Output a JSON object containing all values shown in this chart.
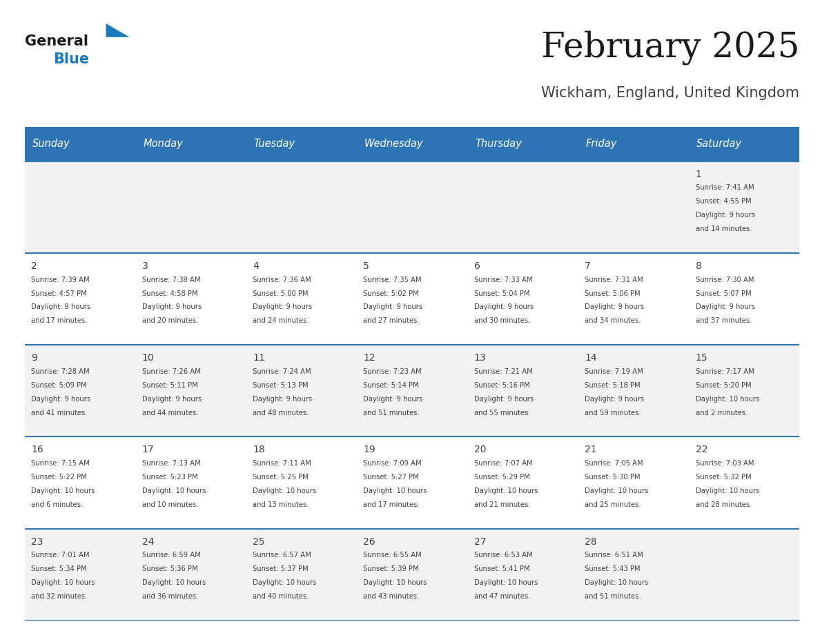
{
  "title": "February 2025",
  "subtitle": "Wickham, England, United Kingdom",
  "header_bg": "#2E74B5",
  "header_text_color": "#FFFFFF",
  "cell_bg_odd": "#F2F2F2",
  "cell_bg_even": "#FFFFFF",
  "border_color": "#2E74B5",
  "text_color": "#404040",
  "days_of_week": [
    "Sunday",
    "Monday",
    "Tuesday",
    "Wednesday",
    "Thursday",
    "Friday",
    "Saturday"
  ],
  "calendar_data": [
    [
      {
        "day": null,
        "sunrise": null,
        "sunset": null,
        "daylight": null
      },
      {
        "day": null,
        "sunrise": null,
        "sunset": null,
        "daylight": null
      },
      {
        "day": null,
        "sunrise": null,
        "sunset": null,
        "daylight": null
      },
      {
        "day": null,
        "sunrise": null,
        "sunset": null,
        "daylight": null
      },
      {
        "day": null,
        "sunrise": null,
        "sunset": null,
        "daylight": null
      },
      {
        "day": null,
        "sunrise": null,
        "sunset": null,
        "daylight": null
      },
      {
        "day": 1,
        "sunrise": "7:41 AM",
        "sunset": "4:55 PM",
        "daylight": "9 hours\nand 14 minutes."
      }
    ],
    [
      {
        "day": 2,
        "sunrise": "7:39 AM",
        "sunset": "4:57 PM",
        "daylight": "9 hours\nand 17 minutes."
      },
      {
        "day": 3,
        "sunrise": "7:38 AM",
        "sunset": "4:58 PM",
        "daylight": "9 hours\nand 20 minutes."
      },
      {
        "day": 4,
        "sunrise": "7:36 AM",
        "sunset": "5:00 PM",
        "daylight": "9 hours\nand 24 minutes."
      },
      {
        "day": 5,
        "sunrise": "7:35 AM",
        "sunset": "5:02 PM",
        "daylight": "9 hours\nand 27 minutes."
      },
      {
        "day": 6,
        "sunrise": "7:33 AM",
        "sunset": "5:04 PM",
        "daylight": "9 hours\nand 30 minutes."
      },
      {
        "day": 7,
        "sunrise": "7:31 AM",
        "sunset": "5:06 PM",
        "daylight": "9 hours\nand 34 minutes."
      },
      {
        "day": 8,
        "sunrise": "7:30 AM",
        "sunset": "5:07 PM",
        "daylight": "9 hours\nand 37 minutes."
      }
    ],
    [
      {
        "day": 9,
        "sunrise": "7:28 AM",
        "sunset": "5:09 PM",
        "daylight": "9 hours\nand 41 minutes."
      },
      {
        "day": 10,
        "sunrise": "7:26 AM",
        "sunset": "5:11 PM",
        "daylight": "9 hours\nand 44 minutes."
      },
      {
        "day": 11,
        "sunrise": "7:24 AM",
        "sunset": "5:13 PM",
        "daylight": "9 hours\nand 48 minutes."
      },
      {
        "day": 12,
        "sunrise": "7:23 AM",
        "sunset": "5:14 PM",
        "daylight": "9 hours\nand 51 minutes."
      },
      {
        "day": 13,
        "sunrise": "7:21 AM",
        "sunset": "5:16 PM",
        "daylight": "9 hours\nand 55 minutes."
      },
      {
        "day": 14,
        "sunrise": "7:19 AM",
        "sunset": "5:18 PM",
        "daylight": "9 hours\nand 59 minutes."
      },
      {
        "day": 15,
        "sunrise": "7:17 AM",
        "sunset": "5:20 PM",
        "daylight": "10 hours\nand 2 minutes."
      }
    ],
    [
      {
        "day": 16,
        "sunrise": "7:15 AM",
        "sunset": "5:22 PM",
        "daylight": "10 hours\nand 6 minutes."
      },
      {
        "day": 17,
        "sunrise": "7:13 AM",
        "sunset": "5:23 PM",
        "daylight": "10 hours\nand 10 minutes."
      },
      {
        "day": 18,
        "sunrise": "7:11 AM",
        "sunset": "5:25 PM",
        "daylight": "10 hours\nand 13 minutes."
      },
      {
        "day": 19,
        "sunrise": "7:09 AM",
        "sunset": "5:27 PM",
        "daylight": "10 hours\nand 17 minutes."
      },
      {
        "day": 20,
        "sunrise": "7:07 AM",
        "sunset": "5:29 PM",
        "daylight": "10 hours\nand 21 minutes."
      },
      {
        "day": 21,
        "sunrise": "7:05 AM",
        "sunset": "5:30 PM",
        "daylight": "10 hours\nand 25 minutes."
      },
      {
        "day": 22,
        "sunrise": "7:03 AM",
        "sunset": "5:32 PM",
        "daylight": "10 hours\nand 28 minutes."
      }
    ],
    [
      {
        "day": 23,
        "sunrise": "7:01 AM",
        "sunset": "5:34 PM",
        "daylight": "10 hours\nand 32 minutes."
      },
      {
        "day": 24,
        "sunrise": "6:59 AM",
        "sunset": "5:36 PM",
        "daylight": "10 hours\nand 36 minutes."
      },
      {
        "day": 25,
        "sunrise": "6:57 AM",
        "sunset": "5:37 PM",
        "daylight": "10 hours\nand 40 minutes."
      },
      {
        "day": 26,
        "sunrise": "6:55 AM",
        "sunset": "5:39 PM",
        "daylight": "10 hours\nand 43 minutes."
      },
      {
        "day": 27,
        "sunrise": "6:53 AM",
        "sunset": "5:41 PM",
        "daylight": "10 hours\nand 47 minutes."
      },
      {
        "day": 28,
        "sunrise": "6:51 AM",
        "sunset": "5:43 PM",
        "daylight": "10 hours\nand 51 minutes."
      },
      {
        "day": null,
        "sunrise": null,
        "sunset": null,
        "daylight": null
      }
    ]
  ],
  "logo_text_general": "General",
  "logo_text_blue": "Blue",
  "logo_color_general": "#1a1a1a",
  "logo_color_blue": "#1a7abf"
}
